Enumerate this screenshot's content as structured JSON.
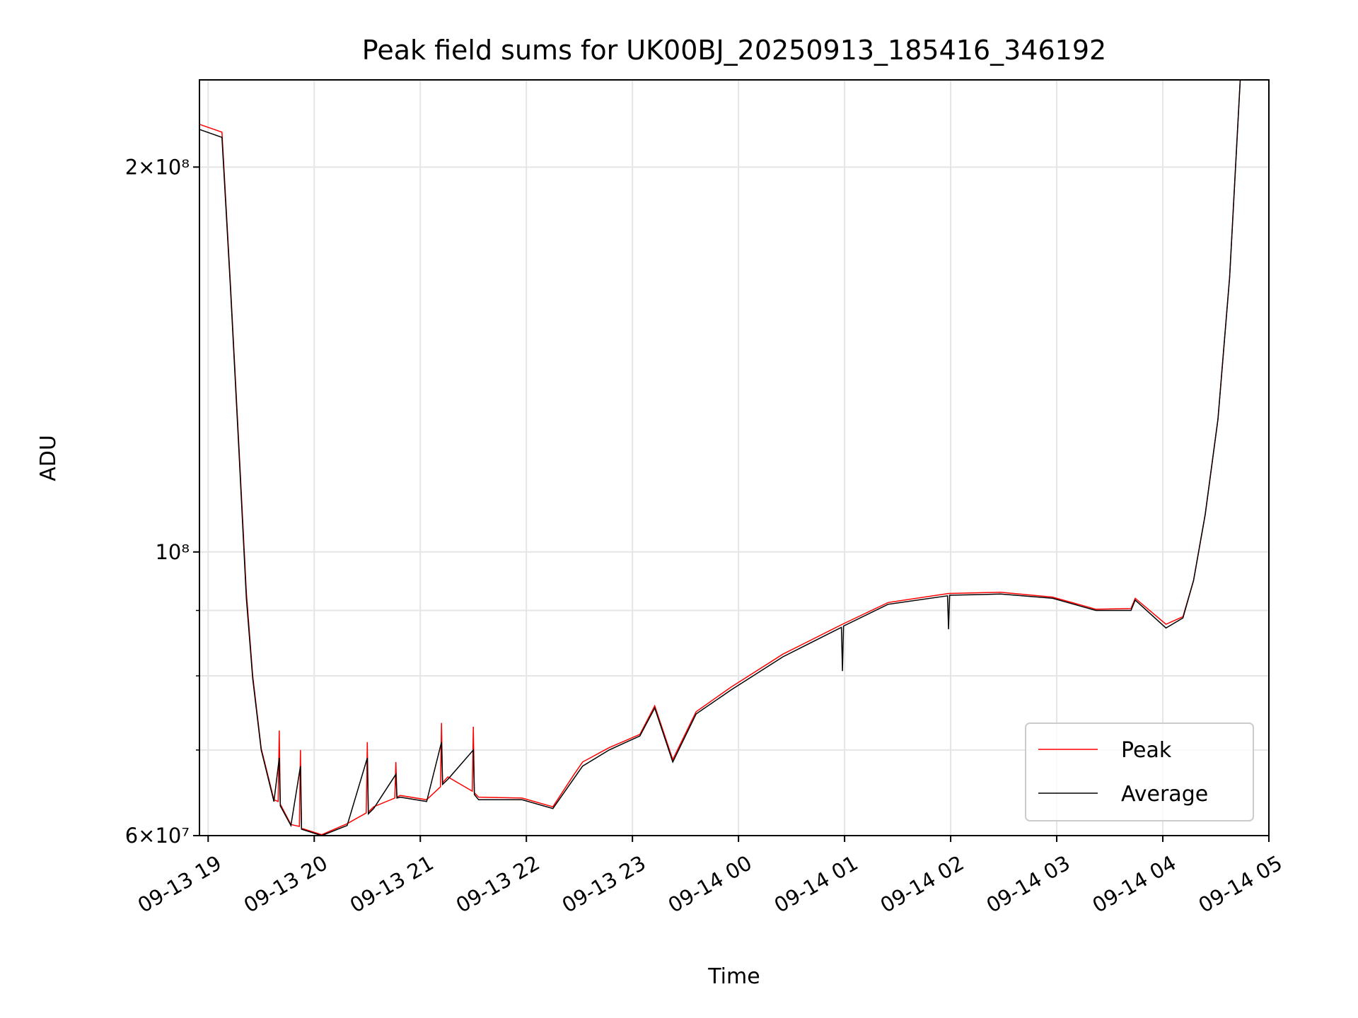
{
  "chart_data": {
    "type": "line",
    "title": "Peak field sums for UK00BJ_20250913_185416_346192",
    "xlabel": "Time",
    "ylabel": "ADU",
    "x_unit": "hours after 09-13 19:00",
    "xlim": [
      -0.082,
      10.0
    ],
    "ylim": [
      60000000,
      234000000
    ],
    "yscale": "log",
    "grid": true,
    "legend_position": "lower-right",
    "x_ticks": [
      {
        "value": 0,
        "label": "09-13 19"
      },
      {
        "value": 1,
        "label": "09-13 20"
      },
      {
        "value": 2,
        "label": "09-13 21"
      },
      {
        "value": 3,
        "label": "09-13 22"
      },
      {
        "value": 4,
        "label": "09-13 23"
      },
      {
        "value": 5,
        "label": "09-14 00"
      },
      {
        "value": 6,
        "label": "09-14 01"
      },
      {
        "value": 7,
        "label": "09-14 02"
      },
      {
        "value": 8,
        "label": "09-14 03"
      },
      {
        "value": 9,
        "label": "09-14 04"
      },
      {
        "value": 10,
        "label": "09-14 05"
      }
    ],
    "y_ticks": [
      {
        "value": 200000000,
        "label": "2×10⁸"
      },
      {
        "value": 100000000,
        "label": "10⁸"
      },
      {
        "value": 60000000,
        "label": "6×10⁷"
      }
    ],
    "y_minor_grid": [
      70000000,
      80000000,
      90000000
    ],
    "series": [
      {
        "name": "Peak",
        "color": "#ff0000",
        "points": [
          [
            -0.08,
            216000000.0
          ],
          [
            0.13,
            213000000.0
          ],
          [
            0.21,
            162000000.0
          ],
          [
            0.29,
            121000000.0
          ],
          [
            0.36,
            93000000.0
          ],
          [
            0.42,
            80000000.0
          ],
          [
            0.5,
            70200000.0
          ],
          [
            0.62,
            64000000.0
          ],
          [
            0.66,
            63800000.0
          ],
          [
            0.67,
            72500000.0
          ],
          [
            0.68,
            63500000.0
          ],
          [
            0.78,
            61200000.0
          ],
          [
            0.86,
            61000000.0
          ],
          [
            0.87,
            70000000.0
          ],
          [
            0.88,
            60800000.0
          ],
          [
            1.07,
            60100000.0
          ],
          [
            1.31,
            61300000.0
          ],
          [
            1.49,
            62500000.0
          ],
          [
            1.5,
            71000000.0
          ],
          [
            1.51,
            62600000.0
          ],
          [
            1.56,
            63200000.0
          ],
          [
            1.76,
            64200000.0
          ],
          [
            1.77,
            68500000.0
          ],
          [
            1.78,
            64300000.0
          ],
          [
            1.81,
            64500000.0
          ],
          [
            2.06,
            64000000.0
          ],
          [
            2.19,
            65500000.0
          ],
          [
            2.2,
            73500000.0
          ],
          [
            2.21,
            66000000.0
          ],
          [
            2.26,
            66700000.0
          ],
          [
            2.49,
            65000000.0
          ],
          [
            2.5,
            73000000.0
          ],
          [
            2.51,
            64800000.0
          ],
          [
            2.55,
            64300000.0
          ],
          [
            2.96,
            64200000.0
          ],
          [
            3.25,
            63200000.0
          ],
          [
            3.45,
            67000000.0
          ],
          [
            3.53,
            68500000.0
          ],
          [
            3.78,
            70300000.0
          ],
          [
            4.07,
            72000000.0
          ],
          [
            4.21,
            75800000.0
          ],
          [
            4.38,
            68800000.0
          ],
          [
            4.6,
            75000000.0
          ],
          [
            4.93,
            78400000.0
          ],
          [
            5.42,
            83200000.0
          ],
          [
            5.98,
            87800000.0
          ],
          [
            6.41,
            91300000.0
          ],
          [
            6.98,
            92800000.0
          ],
          [
            7.47,
            93000000.0
          ],
          [
            7.96,
            92200000.0
          ],
          [
            8.37,
            90200000.0
          ],
          [
            8.7,
            90300000.0
          ],
          [
            8.74,
            92000000.0
          ],
          [
            9.03,
            87800000.0
          ],
          [
            9.19,
            89000000.0
          ],
          [
            9.29,
            95000000.0
          ],
          [
            9.4,
            107000000.0
          ],
          [
            9.52,
            127000000.0
          ],
          [
            9.63,
            164000000.0
          ],
          [
            9.73,
            234000000.0
          ],
          [
            10.0,
            234000000.0
          ]
        ]
      },
      {
        "name": "Average",
        "color": "#000000",
        "points": [
          [
            -0.08,
            214000000.0
          ],
          [
            0.13,
            211000000.0
          ],
          [
            0.21,
            161000000.0
          ],
          [
            0.29,
            120000000.0
          ],
          [
            0.36,
            92000000.0
          ],
          [
            0.42,
            79600000.0
          ],
          [
            0.5,
            70000000.0
          ],
          [
            0.62,
            63800000.0
          ],
          [
            0.67,
            69000000.0
          ],
          [
            0.68,
            63300000.0
          ],
          [
            0.78,
            61100000.0
          ],
          [
            0.87,
            68000000.0
          ],
          [
            0.88,
            60700000.0
          ],
          [
            1.07,
            60000000.0
          ],
          [
            1.31,
            61100000.0
          ],
          [
            1.5,
            69000000.0
          ],
          [
            1.51,
            62400000.0
          ],
          [
            1.56,
            63000000.0
          ],
          [
            1.77,
            67000000.0
          ],
          [
            1.78,
            64200000.0
          ],
          [
            1.81,
            64300000.0
          ],
          [
            2.06,
            63800000.0
          ],
          [
            2.2,
            71000000.0
          ],
          [
            2.21,
            65800000.0
          ],
          [
            2.26,
            66400000.0
          ],
          [
            2.5,
            70000000.0
          ],
          [
            2.51,
            64600000.0
          ],
          [
            2.55,
            64000000.0
          ],
          [
            2.96,
            64000000.0
          ],
          [
            3.25,
            63000000.0
          ],
          [
            3.53,
            68000000.0
          ],
          [
            3.78,
            70000000.0
          ],
          [
            4.07,
            71800000.0
          ],
          [
            4.21,
            75500000.0
          ],
          [
            4.38,
            68500000.0
          ],
          [
            4.6,
            74700000.0
          ],
          [
            4.93,
            78000000.0
          ],
          [
            5.42,
            82800000.0
          ],
          [
            5.97,
            87300000.0
          ],
          [
            5.98,
            80700000.0
          ],
          [
            5.99,
            87500000.0
          ],
          [
            6.41,
            91000000.0
          ],
          [
            6.97,
            92400000.0
          ],
          [
            6.98,
            87000000.0
          ],
          [
            6.99,
            92500000.0
          ],
          [
            7.47,
            92700000.0
          ],
          [
            7.96,
            92000000.0
          ],
          [
            8.37,
            90000000.0
          ],
          [
            8.7,
            90000000.0
          ],
          [
            8.74,
            91700000.0
          ],
          [
            9.03,
            87200000.0
          ],
          [
            9.19,
            88800000.0
          ],
          [
            9.29,
            95000000.0
          ],
          [
            9.4,
            107000000.0
          ],
          [
            9.52,
            127000000.0
          ],
          [
            9.63,
            164000000.0
          ],
          [
            9.73,
            234000000.0
          ],
          [
            10.0,
            234000000.0
          ]
        ]
      }
    ]
  }
}
